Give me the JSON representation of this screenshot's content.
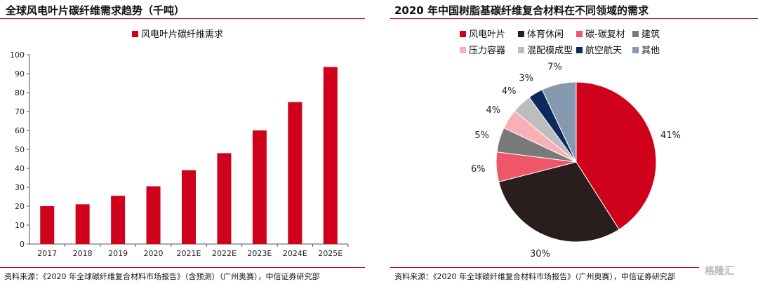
{
  "left": {
    "title": "全球风电叶片碳纤维需求趋势（千吨）",
    "source": "资料来源：《2020 年全球碳纤维复合材料市场报告》（含预测）（广州奥赛），中信证券研究部"
  },
  "right": {
    "title": "2020 年中国树脂基碳纤维复合材料在不同领域的需求",
    "source": "资料来源：《2020 年全球碳纤维复合材料市场报告》（广州奥赛），中信证券研究部"
  },
  "watermark": "格隆汇",
  "chart_data": [
    {
      "type": "bar",
      "title": "全球风电叶片碳纤维需求趋势（千吨）",
      "categories": [
        "2017",
        "2018",
        "2019",
        "2020",
        "2021E",
        "2022E",
        "2023E",
        "2024E",
        "2025E"
      ],
      "series": [
        {
          "name": "风电叶片碳纤维需求",
          "color": "#d0021b",
          "values": [
            20,
            21,
            25.5,
            30.5,
            39,
            48,
            60,
            75,
            93.5
          ]
        }
      ],
      "ylim": [
        0,
        100
      ],
      "yticks": [
        "0",
        "10",
        "20",
        "30",
        "40",
        "50",
        "60",
        "70",
        "80",
        "90",
        "100"
      ],
      "grid": false,
      "legend": "top-center"
    },
    {
      "type": "pie",
      "title": "2020 年中国树脂基碳纤维复合材料在不同领域的需求",
      "slices": [
        {
          "label": "风电叶片",
          "value": 41,
          "text": "41%",
          "color": "#d0021b"
        },
        {
          "label": "体育休闲",
          "value": 30,
          "text": "30%",
          "color": "#2a1d1d"
        },
        {
          "label": "碳-碳复材",
          "value": 6,
          "text": "6%",
          "color": "#f0566a"
        },
        {
          "label": "建筑",
          "value": 5,
          "text": "5%",
          "color": "#7a7a7a"
        },
        {
          "label": "压力容器",
          "value": 4,
          "text": "4%",
          "color": "#f7b0b5"
        },
        {
          "label": "混配模成型",
          "value": 4,
          "text": "4%",
          "color": "#bdbdbd"
        },
        {
          "label": "航空航天",
          "value": 3,
          "text": "3%",
          "color": "#0d2a5c"
        },
        {
          "label": "其他",
          "value": 7,
          "text": "7%",
          "color": "#8799b0"
        }
      ],
      "legend": "top"
    }
  ]
}
